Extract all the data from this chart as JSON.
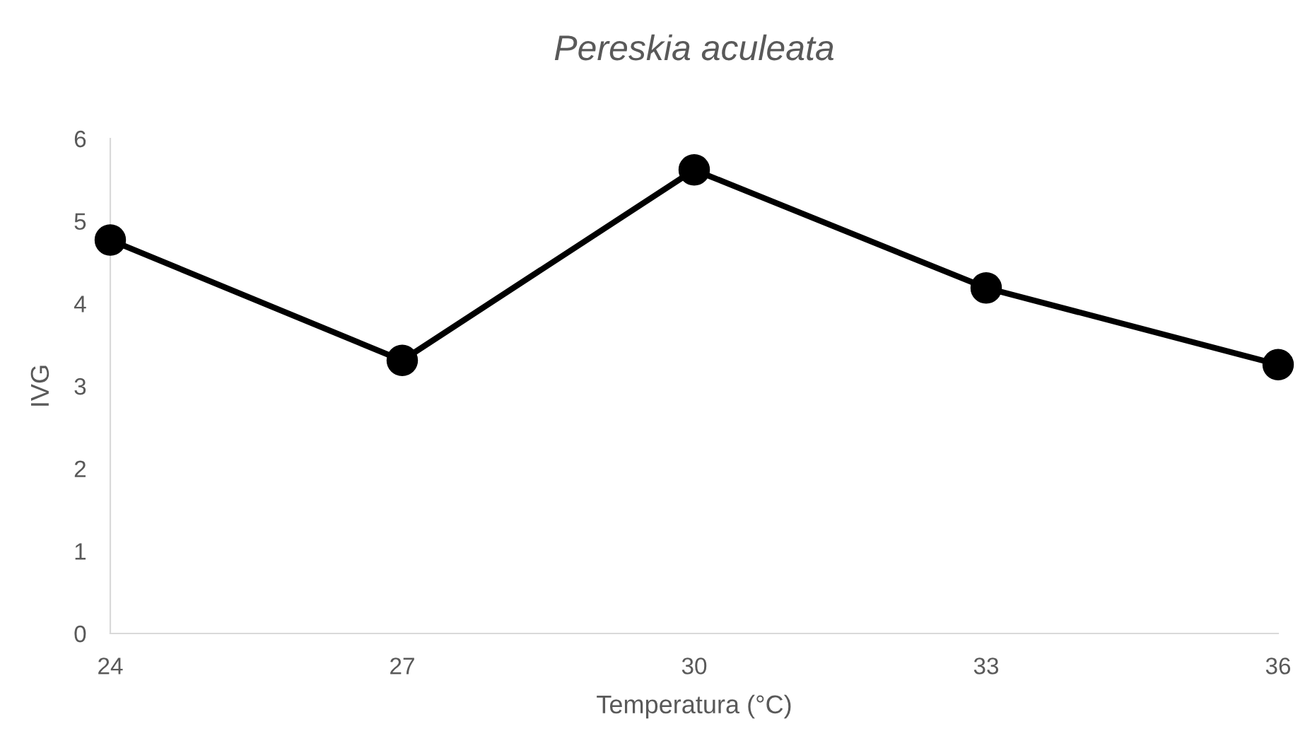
{
  "chart_data": {
    "type": "line",
    "title": "Pereskia aculeata",
    "xlabel": "Temperatura (°C)",
    "ylabel": "IVG",
    "x": [
      24,
      27,
      30,
      33,
      36
    ],
    "series": [
      {
        "color": "#000000",
        "values": [
          4.77,
          3.31,
          5.62,
          4.19,
          3.26
        ]
      }
    ],
    "xlim": [
      24,
      36
    ],
    "xticks": [
      24,
      27,
      30,
      33,
      36
    ],
    "ylim": [
      0,
      6
    ],
    "yticks": [
      0,
      1,
      2,
      3,
      4,
      5,
      6
    ],
    "marker": "circle",
    "line_style": "solid",
    "grid": false,
    "legend": false
  }
}
